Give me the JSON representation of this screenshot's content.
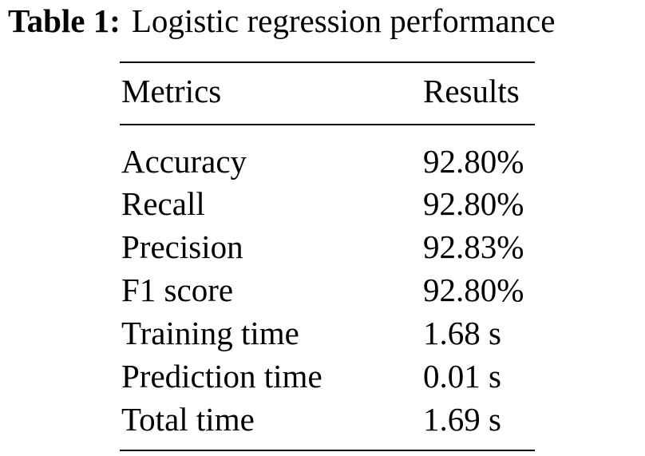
{
  "caption": {
    "label": "Table 1:",
    "title": "Logistic regression performance"
  },
  "table": {
    "headers": [
      "Metrics",
      "Results"
    ],
    "rows": [
      [
        "Accuracy",
        "92.80%"
      ],
      [
        "Recall",
        "92.80%"
      ],
      [
        "Precision",
        "92.83%"
      ],
      [
        "F1 score",
        "92.80%"
      ],
      [
        "Training time",
        "1.68 s"
      ],
      [
        "Prediction time",
        "0.01 s"
      ],
      [
        "Total time",
        "1.69 s"
      ]
    ]
  }
}
